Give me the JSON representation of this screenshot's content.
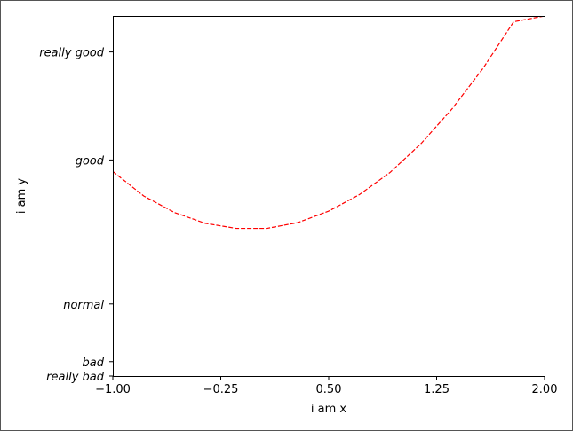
{
  "chart_data": {
    "type": "line",
    "title": "",
    "xlabel": "i am x",
    "ylabel": "i am y",
    "xlim": [
      -1.0,
      2.0
    ],
    "ylim": [
      -2.0,
      3.0
    ],
    "grid": false,
    "x_ticks": [
      {
        "value": -1.0,
        "label": "−1.00"
      },
      {
        "value": -0.25,
        "label": "−0.25"
      },
      {
        "value": 0.5,
        "label": "0.50"
      },
      {
        "value": 1.25,
        "label": "1.25"
      },
      {
        "value": 2.0,
        "label": "2.00"
      }
    ],
    "y_ticks": [
      {
        "value": -2.0,
        "label": "really bad"
      },
      {
        "value": -1.8,
        "label": "bad"
      },
      {
        "value": -1.0,
        "label": "normal"
      },
      {
        "value": 1.0,
        "label": "good"
      },
      {
        "value": 2.5,
        "label": "really good"
      }
    ],
    "series": [
      {
        "color": "#ff0000",
        "line_style": "dashed",
        "x": [
          -1.0,
          -0.7857,
          -0.5714,
          -0.3571,
          -0.1429,
          0.0714,
          0.2857,
          0.5,
          0.7143,
          0.9286,
          1.1429,
          1.3571,
          1.5714,
          1.7857,
          2.0
        ],
        "y": [
          0.84,
          0.5,
          0.27,
          0.12,
          0.05,
          0.05,
          0.13,
          0.29,
          0.52,
          0.83,
          1.23,
          1.71,
          2.27,
          2.92,
          3.0
        ]
      }
    ]
  }
}
